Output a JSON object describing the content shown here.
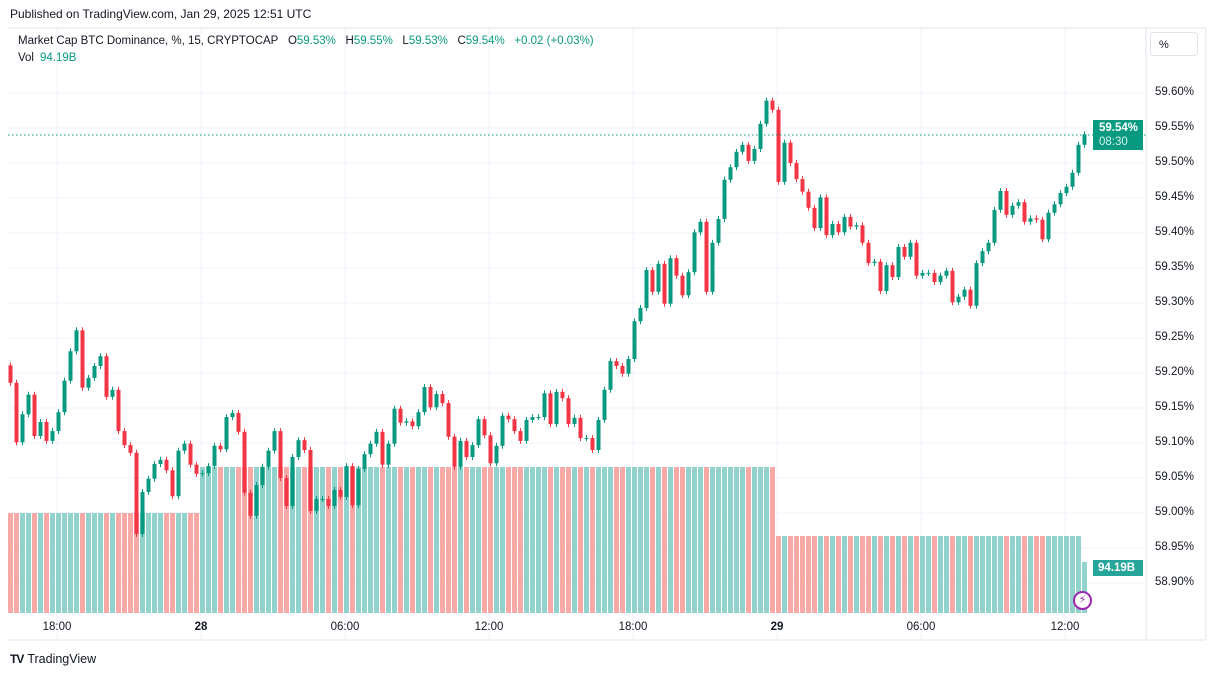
{
  "published": "Published on TradingView.com, Jan 29, 2025 12:51 UTC",
  "legend": {
    "symbol": "Market Cap BTC Dominance, %, 15, CRYPTOCAP",
    "o_label": "O",
    "o": "59.53%",
    "h_label": "H",
    "h": "59.55%",
    "l_label": "L",
    "l": "59.53%",
    "c_label": "C",
    "c": "59.54%",
    "change": "+0.02 (+0.03%)",
    "vol_label": "Vol",
    "vol": "94.19B"
  },
  "scale_button": "%",
  "price_axis": [
    "59.60%",
    "59.55%",
    "59.50%",
    "59.45%",
    "59.40%",
    "59.35%",
    "59.30%",
    "59.25%",
    "59.20%",
    "59.15%",
    "59.10%",
    "59.05%",
    "59.00%",
    "58.95%",
    "58.90%"
  ],
  "time_axis": [
    {
      "label": "18:00",
      "bold": false
    },
    {
      "label": "28",
      "bold": true
    },
    {
      "label": "06:00",
      "bold": false
    },
    {
      "label": "12:00",
      "bold": false
    },
    {
      "label": "18:00",
      "bold": false
    },
    {
      "label": "29",
      "bold": true
    },
    {
      "label": "06:00",
      "bold": false
    },
    {
      "label": "12:00",
      "bold": false
    }
  ],
  "last_price": {
    "value": "59.54%",
    "countdown": "08:30"
  },
  "volume_label": "94.19B",
  "footer": {
    "logo": "TV",
    "brand": "TradingView"
  },
  "colors": {
    "up": "#089981",
    "down": "#f23645",
    "vol_up": "#92d2cc",
    "vol_down": "#f7a9a7",
    "last_line": "#089981",
    "grid": "#f0f3fa",
    "event": "#9c27b0"
  },
  "icons": {
    "event": "lightning-icon",
    "logo": "tradingview-logo"
  },
  "chart_data": {
    "type": "candlestick",
    "interval": "15",
    "unit": "%",
    "ylim": [
      58.88,
      59.62
    ],
    "first_open": 59.211,
    "closes": [
      59.186,
      59.101,
      59.141,
      59.169,
      59.11,
      59.13,
      59.103,
      59.117,
      59.144,
      59.189,
      59.231,
      59.261,
      59.179,
      59.193,
      59.21,
      59.224,
      59.166,
      59.176,
      59.117,
      59.097,
      59.086,
      58.97,
      59.03,
      59.049,
      59.07,
      59.076,
      59.061,
      59.024,
      59.089,
      59.099,
      59.069,
      59.056,
      59.057,
      59.067,
      59.096,
      59.091,
      59.137,
      59.143,
      59.116,
      59.029,
      58.996,
      59.04,
      59.066,
      59.089,
      59.117,
      59.05,
      59.01,
      59.08,
      59.104,
      59.09,
      59.003,
      59.02,
      59.02,
      59.01,
      59.033,
      59.023,
      59.067,
      59.011,
      59.063,
      59.084,
      59.099,
      59.116,
      59.069,
      59.099,
      59.149,
      59.129,
      59.131,
      59.124,
      59.144,
      59.18,
      59.151,
      59.17,
      59.157,
      59.109,
      59.066,
      59.103,
      59.08,
      59.097,
      59.134,
      59.111,
      59.071,
      59.096,
      59.139,
      59.134,
      59.117,
      59.103,
      59.133,
      59.137,
      59.137,
      59.171,
      59.127,
      59.173,
      59.164,
      59.127,
      59.136,
      59.107,
      59.107,
      59.09,
      59.133,
      59.176,
      59.217,
      59.21,
      59.199,
      59.22,
      59.274,
      59.293,
      59.347,
      59.316,
      59.356,
      59.299,
      59.364,
      59.339,
      59.311,
      59.344,
      59.401,
      59.416,
      59.316,
      59.386,
      59.42,
      59.476,
      59.494,
      59.516,
      59.526,
      59.503,
      59.52,
      59.556,
      59.589,
      59.576,
      59.473,
      59.529,
      59.5,
      59.477,
      59.459,
      59.436,
      59.407,
      59.451,
      59.397,
      59.413,
      59.401,
      59.423,
      59.409,
      59.411,
      59.386,
      59.357,
      59.359,
      59.317,
      59.354,
      59.337,
      59.38,
      59.366,
      59.386,
      59.339,
      59.343,
      59.343,
      59.33,
      59.339,
      59.346,
      59.301,
      59.309,
      59.319,
      59.296,
      59.357,
      59.374,
      59.386,
      59.433,
      59.46,
      59.426,
      59.439,
      59.444,
      59.416,
      59.421,
      59.419,
      59.391,
      59.429,
      59.441,
      59.457,
      59.466,
      59.486,
      59.526,
      59.541
    ],
    "volume_unit": "B",
    "volume_segments": [
      {
        "count": 32,
        "value": 184.7
      },
      {
        "count": 96,
        "value": 269.6
      },
      {
        "count": 51,
        "value": 142.2
      },
      {
        "count": 1,
        "value": 94.19
      }
    ],
    "last": 59.54,
    "grid": true
  }
}
